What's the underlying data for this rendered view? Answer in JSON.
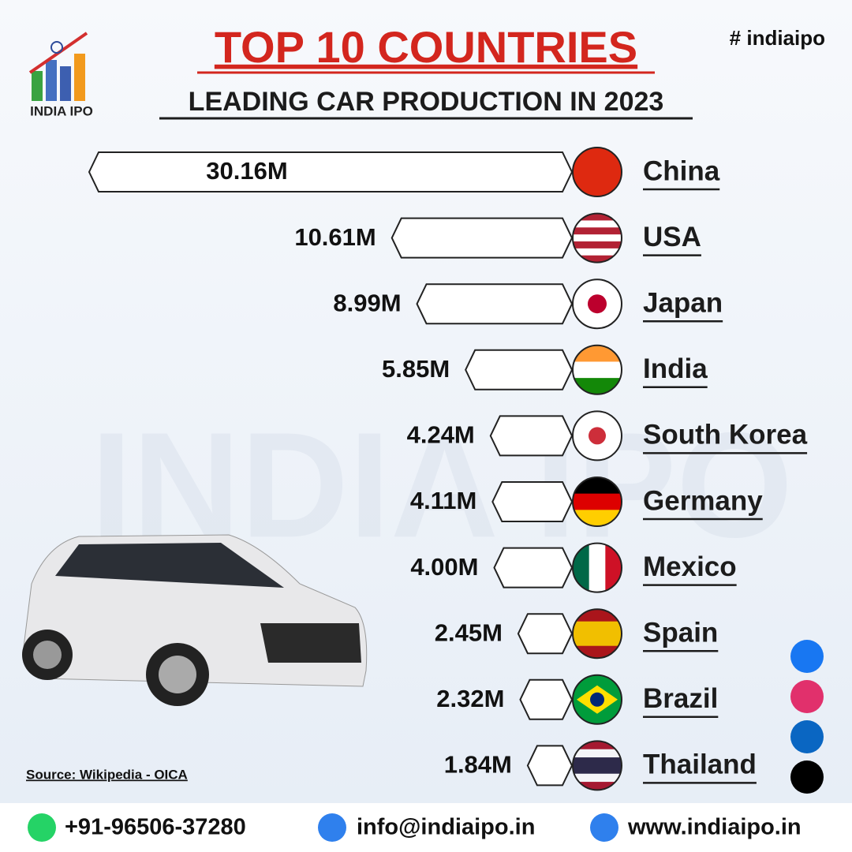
{
  "chart_data": {
    "type": "bar",
    "title": "TOP 10 COUNTRIES",
    "subtitle": "LEADING CAR PRODUCTION IN 2023",
    "hashtag": "# indiaipo",
    "brand": "INDIA IPO",
    "source": "Source: Wikipedia - OICA",
    "categories": [
      "China",
      "USA",
      "Japan",
      "India",
      "South Korea",
      "Germany",
      "Mexico",
      "Spain",
      "Brazil",
      "Thailand"
    ],
    "values": [
      30.16,
      10.61,
      8.99,
      5.85,
      4.24,
      4.11,
      4.0,
      2.45,
      2.32,
      1.84
    ],
    "value_labels": [
      "30.16M",
      "10.61M",
      "8.99M",
      "5.85M",
      "4.24M",
      "4.11M",
      "4.00M",
      "2.45M",
      "2.32M",
      "1.84M"
    ],
    "color": "#ffffff",
    "contacts": {
      "phone": "+91-96506-37280",
      "email": "info@indiaipo.in",
      "website": "www.indiaipo.in"
    }
  }
}
